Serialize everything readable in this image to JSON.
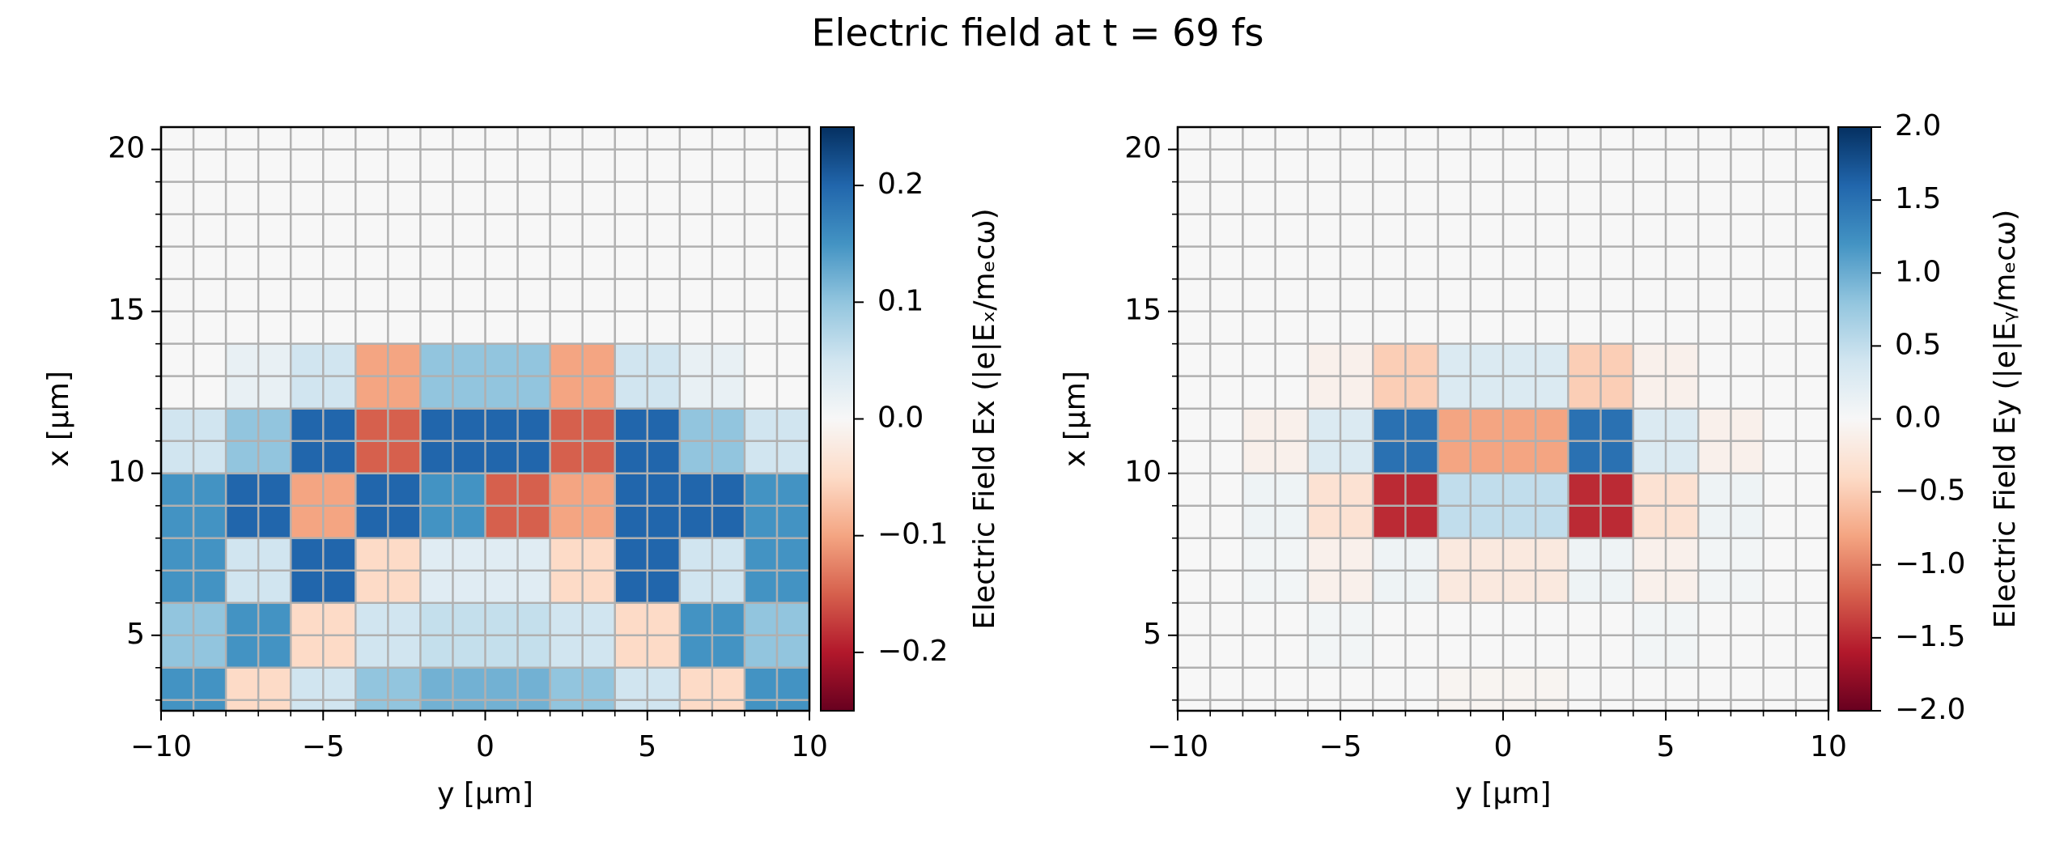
{
  "title": "Electric field at t = 69 fs",
  "chart_data": [
    {
      "type": "heatmap",
      "xlabel": "y [µm]",
      "ylabel": "x [µm]",
      "xlim": [
        -10,
        10
      ],
      "ylim": [
        2.67,
        20.69
      ],
      "xticks": [
        {
          "value": -10,
          "label": "−10"
        },
        {
          "value": -5,
          "label": "−5"
        },
        0,
        5,
        10
      ],
      "yticks": [
        5,
        10,
        15,
        20
      ],
      "minor_xticks": [
        -10,
        -9,
        -8,
        -7,
        -6,
        -5,
        -4,
        -3,
        -2,
        -1,
        0,
        1,
        2,
        3,
        4,
        5,
        6,
        7,
        8,
        9,
        10
      ],
      "minor_yticks": [
        3,
        4,
        5,
        6,
        7,
        8,
        9,
        10,
        11,
        12,
        13,
        14,
        15,
        16,
        17,
        18,
        19,
        20
      ],
      "grid": true,
      "x_edges": [
        -10,
        -8,
        -6,
        -4,
        -2,
        0,
        2,
        4,
        6,
        8,
        10
      ],
      "y_edges": [
        2,
        4,
        6,
        8,
        10,
        12,
        14,
        16,
        18,
        20,
        22
      ],
      "z": [
        [
          0.15,
          -0.05,
          0.05,
          0.1,
          0.12,
          0.12,
          0.1,
          0.05,
          -0.05,
          0.15
        ],
        [
          0.1,
          0.15,
          -0.05,
          0.05,
          0.06,
          0.06,
          0.05,
          -0.05,
          0.15,
          0.1
        ],
        [
          0.15,
          0.05,
          0.2,
          -0.05,
          0.03,
          0.03,
          -0.05,
          0.2,
          0.05,
          0.15
        ],
        [
          0.15,
          0.2,
          -0.1,
          0.2,
          0.15,
          -0.15,
          -0.1,
          0.2,
          0.2,
          0.15
        ],
        [
          0.05,
          0.1,
          0.2,
          -0.15,
          0.2,
          0.2,
          -0.15,
          0.2,
          0.1,
          0.05
        ],
        [
          0,
          0.02,
          0.05,
          -0.1,
          0.1,
          0.1,
          -0.1,
          0.05,
          0.02,
          0
        ],
        [
          0,
          0,
          0,
          0,
          0,
          0,
          0,
          0,
          0,
          0
        ],
        [
          0,
          0,
          0,
          0,
          0,
          0,
          0,
          0,
          0,
          0
        ],
        [
          0,
          0,
          0,
          0,
          0,
          0,
          0,
          0,
          0,
          0
        ],
        [
          0,
          0,
          0,
          0,
          0,
          0,
          0,
          0,
          0,
          0
        ]
      ],
      "colormap": [
        "#67001f",
        "#b2182b",
        "#d6604d",
        "#f4a582",
        "#fddbc7",
        "#f7f7f7",
        "#d1e5f0",
        "#92c5de",
        "#4393c3",
        "#2166ac",
        "#053061"
      ],
      "colorbar": {
        "label": "Electric Field Ex (|e|Eₓ/mₑcω)",
        "clim": [
          -0.25,
          0.25
        ],
        "ticks": [
          {
            "value": -0.2,
            "label": "−0.2"
          },
          {
            "value": -0.1,
            "label": "−0.1"
          },
          {
            "value": 0,
            "label": "0.0"
          },
          0.1,
          0.2
        ]
      }
    },
    {
      "type": "heatmap",
      "xlabel": "y [µm]",
      "ylabel": "x [µm]",
      "xlim": [
        -10,
        10
      ],
      "ylim": [
        2.67,
        20.69
      ],
      "xticks": [
        {
          "value": -10,
          "label": "−10"
        },
        {
          "value": -5,
          "label": "−5"
        },
        0,
        5,
        10
      ],
      "yticks": [
        5,
        10,
        15,
        20
      ],
      "minor_xticks": [
        -10,
        -9,
        -8,
        -7,
        -6,
        -5,
        -4,
        -3,
        -2,
        -1,
        0,
        1,
        2,
        3,
        4,
        5,
        6,
        7,
        8,
        9,
        10
      ],
      "minor_yticks": [
        3,
        4,
        5,
        6,
        7,
        8,
        9,
        10,
        11,
        12,
        13,
        14,
        15,
        16,
        17,
        18,
        19,
        20
      ],
      "grid": true,
      "x_edges": [
        -10,
        -8,
        -6,
        -4,
        -2,
        0,
        2,
        4,
        6,
        8,
        10
      ],
      "y_edges": [
        2,
        4,
        6,
        8,
        10,
        12,
        14,
        16,
        18,
        20,
        22
      ],
      "z": [
        [
          0,
          0,
          0,
          0,
          -0.05,
          -0.05,
          0,
          0,
          0,
          0
        ],
        [
          0,
          0,
          0.05,
          0,
          0,
          0,
          0,
          0.05,
          0,
          0
        ],
        [
          0,
          0.05,
          -0.1,
          0.1,
          -0.2,
          -0.2,
          0.1,
          -0.1,
          0.05,
          0
        ],
        [
          0,
          0.1,
          -0.3,
          -1.5,
          0.5,
          0.5,
          -1.5,
          -0.3,
          0.1,
          0
        ],
        [
          0,
          -0.1,
          0.3,
          1.5,
          -0.8,
          -0.8,
          1.5,
          0.3,
          -0.1,
          0
        ],
        [
          0,
          0,
          -0.1,
          -0.5,
          0.3,
          0.3,
          -0.5,
          -0.1,
          0,
          0
        ],
        [
          0,
          0,
          0,
          0,
          0,
          0,
          0,
          0,
          0,
          0
        ],
        [
          0,
          0,
          0,
          0,
          0,
          0,
          0,
          0,
          0,
          0
        ],
        [
          0,
          0,
          0,
          0,
          0,
          0,
          0,
          0,
          0,
          0
        ],
        [
          0,
          0,
          0,
          0,
          0,
          0,
          0,
          0,
          0,
          0
        ]
      ],
      "colormap": [
        "#67001f",
        "#b2182b",
        "#d6604d",
        "#f4a582",
        "#fddbc7",
        "#f7f7f7",
        "#d1e5f0",
        "#92c5de",
        "#4393c3",
        "#2166ac",
        "#053061"
      ],
      "colorbar": {
        "label": "Electric Field Ey (|e|Eᵧ/mₑcω)",
        "clim": [
          -2,
          2
        ],
        "ticks": [
          {
            "value": -2,
            "label": "−2.0"
          },
          {
            "value": -1.5,
            "label": "−1.5"
          },
          {
            "value": -1,
            "label": "−1.0"
          },
          {
            "value": -0.5,
            "label": "−0.5"
          },
          {
            "value": 0,
            "label": "0.0"
          },
          {
            "value": 0.5,
            "label": "0.5"
          },
          {
            "value": 1,
            "label": "1.0"
          },
          {
            "value": 1.5,
            "label": "1.5"
          },
          {
            "value": 2,
            "label": "2.0"
          }
        ]
      }
    }
  ]
}
